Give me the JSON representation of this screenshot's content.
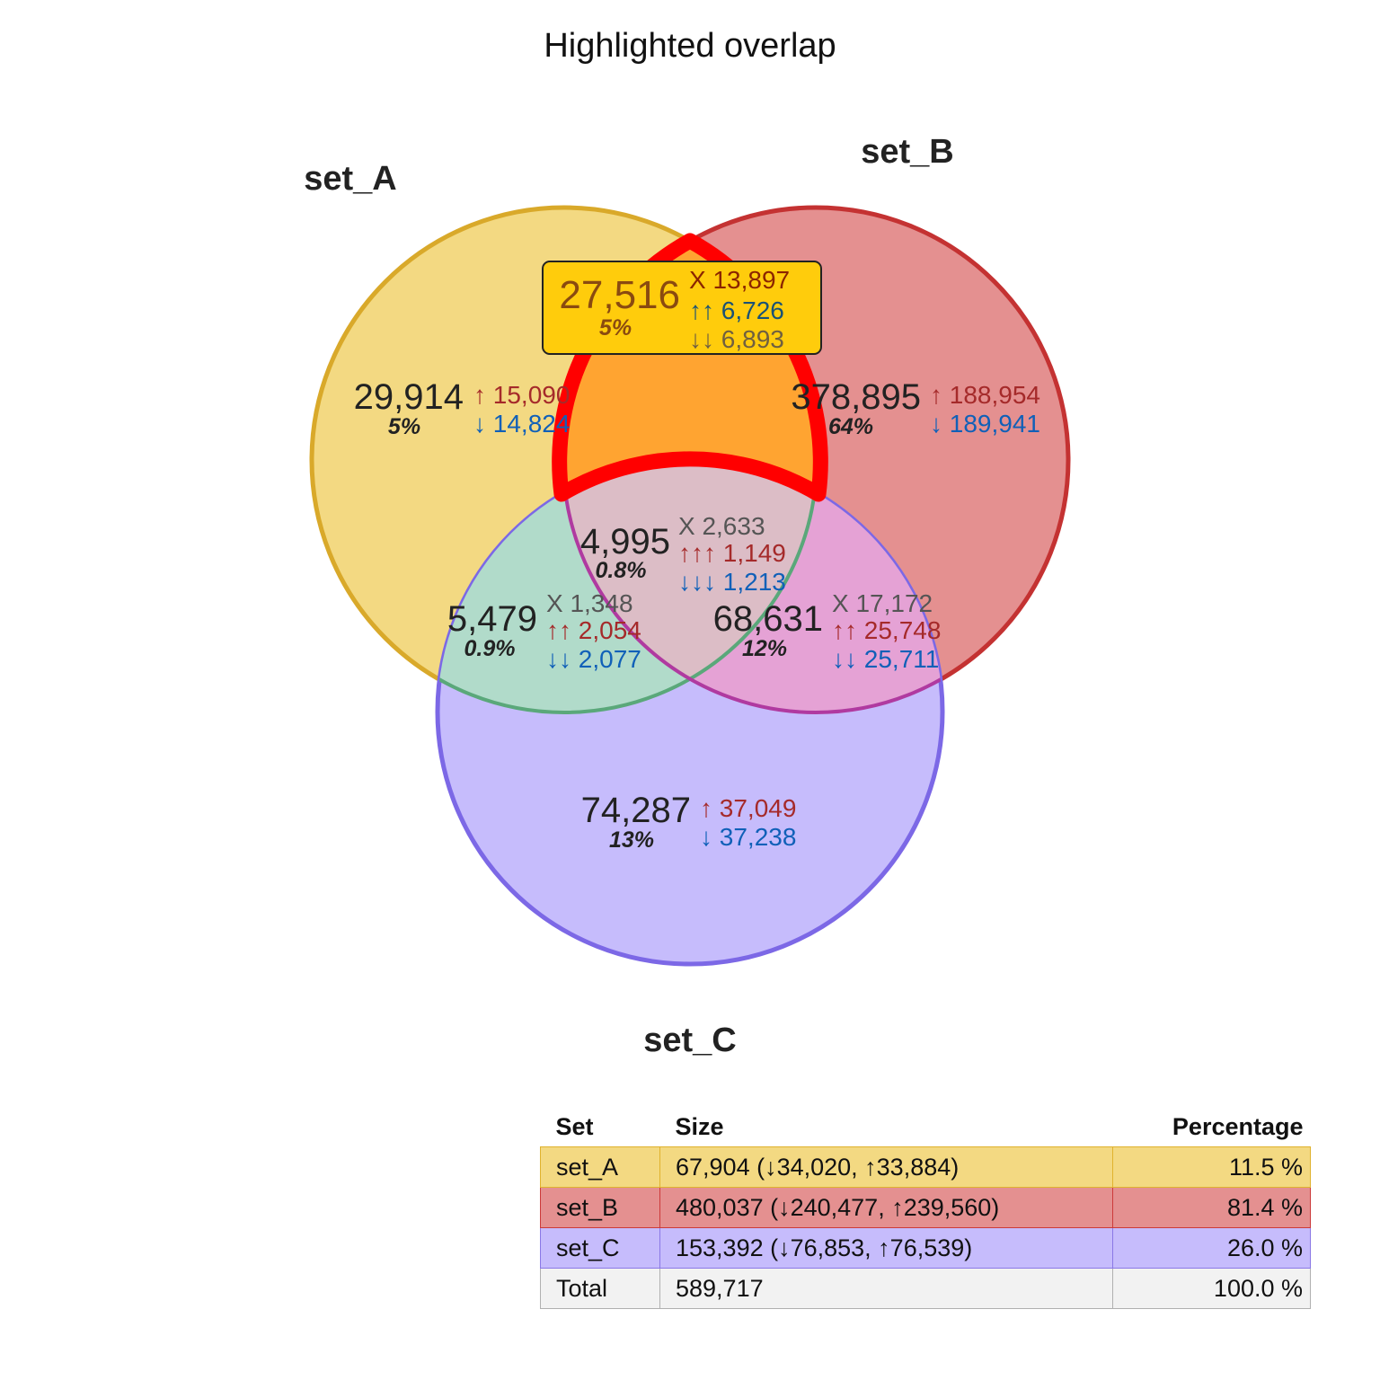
{
  "title": "Highlighted overlap",
  "colors": {
    "set_A": "#e3b32b",
    "set_B": "#cd3232",
    "set_C": "#7d68e6",
    "highlight": "#ff0000",
    "up": "#a52a2a",
    "down": "#1060b8",
    "neutral": "#555555"
  },
  "sets": [
    {
      "id": "A",
      "name": "set_A"
    },
    {
      "id": "B",
      "name": "set_B"
    },
    {
      "id": "C",
      "name": "set_C"
    }
  ],
  "regions": [
    {
      "id": "A_only",
      "count": "29,914",
      "percent": "5%",
      "lines": [
        {
          "kind": "up",
          "text": "↑ 15,090"
        },
        {
          "kind": "down",
          "text": "↓ 14,824"
        }
      ]
    },
    {
      "id": "B_only",
      "count": "378,895",
      "percent": "64%",
      "lines": [
        {
          "kind": "up",
          "text": "↑ 188,954"
        },
        {
          "kind": "down",
          "text": "↓ 189,941"
        }
      ]
    },
    {
      "id": "C_only",
      "count": "74,287",
      "percent": "13%",
      "lines": [
        {
          "kind": "up",
          "text": "↑ 37,049"
        },
        {
          "kind": "down",
          "text": "↓ 37,238"
        }
      ]
    },
    {
      "id": "AB",
      "count": "27,516",
      "percent": "5%",
      "highlighted": true,
      "lines": [
        {
          "kind": "x",
          "text": "X 13,897"
        },
        {
          "kind": "up",
          "text": "↑↑ 6,726"
        },
        {
          "kind": "down",
          "text": "↓↓ 6,893"
        }
      ]
    },
    {
      "id": "AC",
      "count": "5,479",
      "percent": "0.9%",
      "lines": [
        {
          "kind": "x",
          "text": "X 1,348"
        },
        {
          "kind": "up",
          "text": "↑↑ 2,054"
        },
        {
          "kind": "down",
          "text": "↓↓ 2,077"
        }
      ]
    },
    {
      "id": "BC",
      "count": "68,631",
      "percent": "12%",
      "lines": [
        {
          "kind": "x",
          "text": "X 17,172"
        },
        {
          "kind": "up",
          "text": "↑↑ 25,748"
        },
        {
          "kind": "down",
          "text": "↓↓ 25,711"
        }
      ]
    },
    {
      "id": "ABC",
      "count": "4,995",
      "percent": "0.8%",
      "lines": [
        {
          "kind": "x",
          "text": "X 2,633"
        },
        {
          "kind": "up",
          "text": "↑↑↑ 1,149"
        },
        {
          "kind": "down",
          "text": "↓↓↓ 1,213"
        }
      ]
    }
  ],
  "table": {
    "headers": {
      "set": "Set",
      "size": "Size",
      "percentage": "Percentage"
    },
    "rows": [
      {
        "set": "set_A",
        "size": "67,904 (↓34,020, ↑33,884)",
        "percentage": "11.5 %",
        "fill": "#f3d982",
        "border": "#e0b22e"
      },
      {
        "set": "set_B",
        "size": "480,037 (↓240,477, ↑239,560)",
        "percentage": "81.4 %",
        "fill": "#e49090",
        "border": "#cc3a3a"
      },
      {
        "set": "set_C",
        "size": "153,392 (↓76,853, ↑76,539)",
        "percentage": "26.0 %",
        "fill": "#c6bcfc",
        "border": "#8a78e6"
      },
      {
        "set": "Total",
        "size": "589,717",
        "percentage": "100.0 %",
        "fill": "#f2f2f2",
        "border": "#b0b0b0"
      }
    ]
  }
}
